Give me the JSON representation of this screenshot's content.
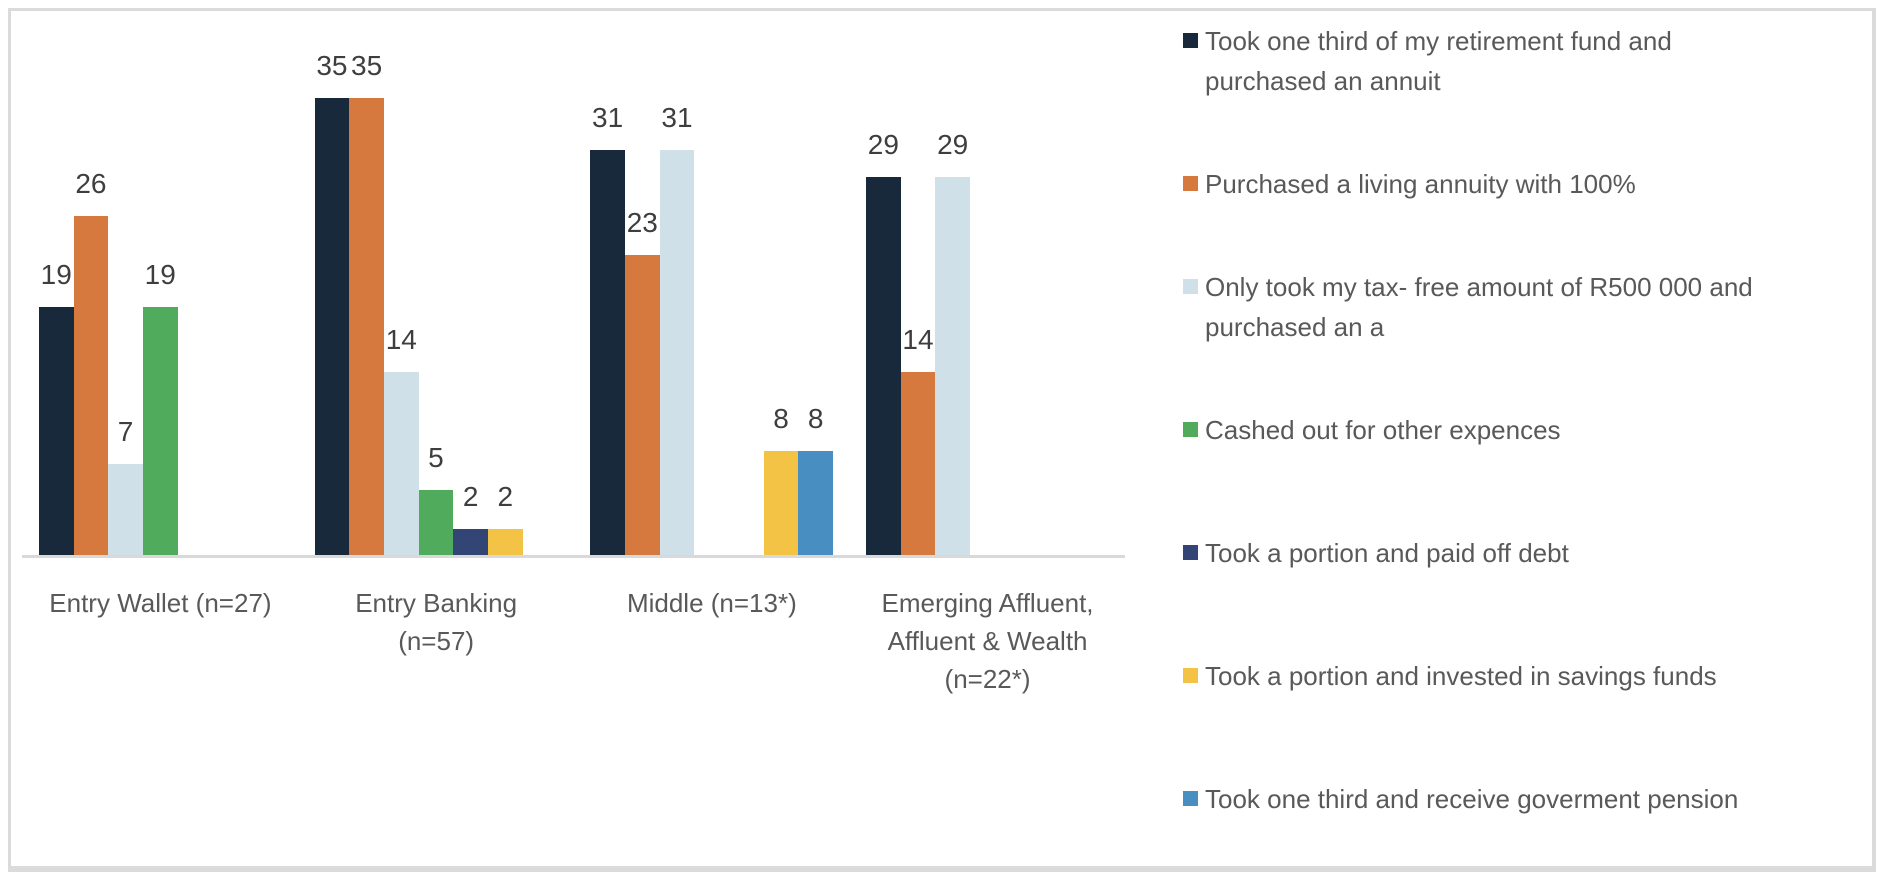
{
  "chart_data": {
    "type": "bar",
    "title": "",
    "categories": [
      "Entry Wallet (n=27)",
      "Entry Banking (n=57)",
      "Middle (n=13*)",
      "Emerging Affluent, Affluent & Wealth (n=22*)"
    ],
    "category_label_lines": [
      [
        "Entry Wallet (n=27)"
      ],
      [
        "Entry Banking",
        "(n=57)"
      ],
      [
        "Middle (n=13*)"
      ],
      [
        "Emerging Affluent,",
        "Affluent & Wealth",
        "(n=22*)"
      ]
    ],
    "series": [
      {
        "name": "Took one third of my retirement fund and purchased an annuit",
        "color": "#17293A",
        "values": [
          19,
          35,
          31,
          29
        ]
      },
      {
        "name": "Purchased a living annuity with 100%",
        "color": "#D5793E",
        "values": [
          26,
          35,
          23,
          14
        ]
      },
      {
        "name": "Only took my tax- free amount of R500 000 and purchased an a",
        "color": "#D0E0E9",
        "values": [
          7,
          14,
          31,
          29
        ]
      },
      {
        "name": "Cashed out for other expences",
        "color": "#51AB5C",
        "values": [
          19,
          5,
          0,
          0
        ]
      },
      {
        "name": "Took a portion and paid off debt",
        "color": "#334574",
        "values": [
          0,
          2,
          0,
          0
        ]
      },
      {
        "name": "Took a portion and invested in savings funds",
        "color": "#F2C344",
        "values": [
          0,
          2,
          8,
          0
        ]
      },
      {
        "name": "Took one third and receive goverment pension",
        "color": "#488EC0",
        "values": [
          0,
          0,
          8,
          0
        ]
      }
    ],
    "value_labels_shown": true,
    "legend_position": "right",
    "xlabel": "",
    "ylabel": "",
    "ylim": [
      0,
      40
    ],
    "grid": false,
    "y_axis_shown": false,
    "axis_line_color": "#D9D9D9"
  },
  "style": {
    "value_label_color": "#3E3E3E",
    "axis_label_color": "#595959",
    "legend_label_color": "#595959",
    "frame_border_color": "#DBDBDB",
    "background": "#FFFFFF"
  }
}
